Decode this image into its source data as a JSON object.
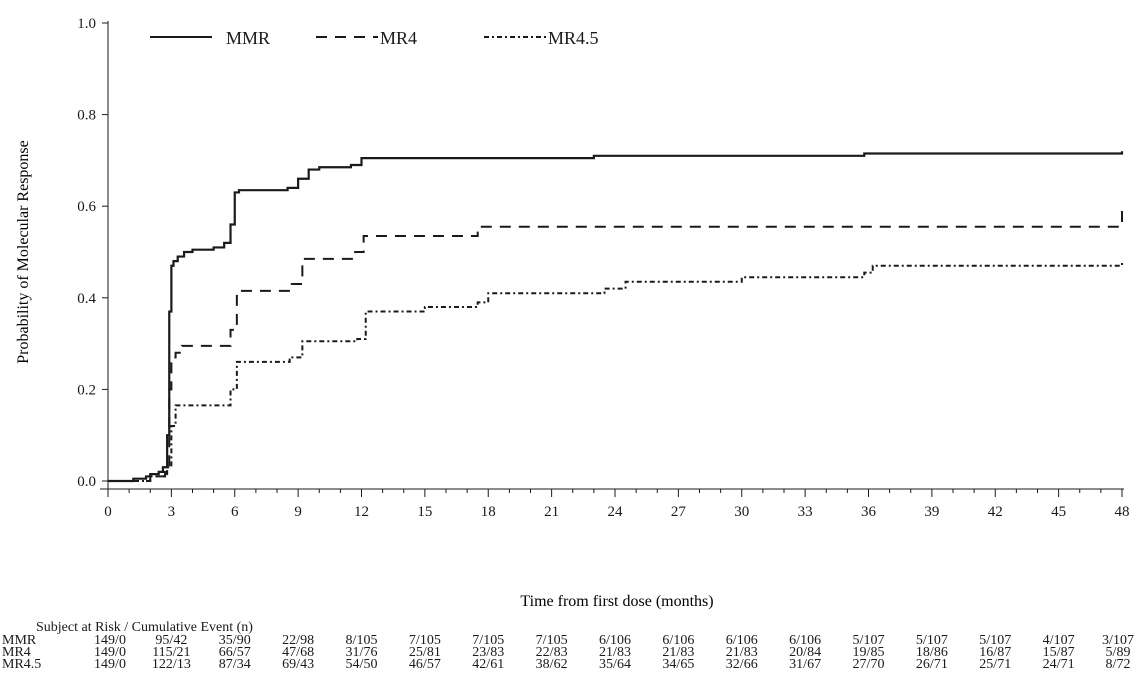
{
  "chart_data": {
    "type": "line",
    "step": true,
    "xlabel": "Time from first dose (months)",
    "ylabel": "Probability of Molecular Response",
    "xlim": [
      0,
      48
    ],
    "ylim": [
      0,
      1.0
    ],
    "xticks": [
      "0",
      "3",
      "6",
      "9",
      "12",
      "15",
      "18",
      "21",
      "24",
      "27",
      "30",
      "33",
      "36",
      "39",
      "42",
      "45",
      "48"
    ],
    "yticks": [
      "0.0",
      "0.2",
      "0.4",
      "0.6",
      "0.8",
      "1.0"
    ],
    "grid": false,
    "legend_position": "top-left",
    "series": [
      {
        "name": "MMR",
        "style": "solid",
        "x": [
          0,
          1.2,
          1.8,
          2.0,
          2.4,
          2.6,
          2.8,
          2.9,
          3.0,
          3.1,
          3.3,
          3.6,
          4.0,
          5.0,
          5.5,
          5.8,
          6.0,
          6.2,
          8.5,
          9.0,
          9.5,
          10.0,
          11.5,
          12.0,
          23.0,
          35.8,
          48.0
        ],
        "y": [
          0,
          0.005,
          0.01,
          0.015,
          0.02,
          0.03,
          0.1,
          0.37,
          0.47,
          0.48,
          0.49,
          0.5,
          0.505,
          0.51,
          0.52,
          0.56,
          0.63,
          0.635,
          0.64,
          0.66,
          0.68,
          0.685,
          0.69,
          0.705,
          0.71,
          0.715,
          0.72
        ]
      },
      {
        "name": "MR4",
        "style": "dashed",
        "x": [
          0,
          2.0,
          2.7,
          2.9,
          3.0,
          3.2,
          3.5,
          5.8,
          6.1,
          8.7,
          9.2,
          11.7,
          12.1,
          17.5,
          48.0
        ],
        "y": [
          0,
          0.01,
          0.02,
          0.2,
          0.27,
          0.28,
          0.295,
          0.33,
          0.415,
          0.43,
          0.485,
          0.5,
          0.535,
          0.555,
          0.595
        ]
      },
      {
        "name": "MR4.5",
        "style": "dotted-dash",
        "x": [
          0,
          2.0,
          2.8,
          3.0,
          3.2,
          5.8,
          6.1,
          8.6,
          9.2,
          11.8,
          12.2,
          15.0,
          17.5,
          18.0,
          23.5,
          24.5,
          30.0,
          35.8,
          36.2,
          48.0
        ],
        "y": [
          0,
          0.01,
          0.03,
          0.12,
          0.165,
          0.2,
          0.26,
          0.27,
          0.305,
          0.31,
          0.37,
          0.38,
          0.39,
          0.41,
          0.42,
          0.435,
          0.445,
          0.455,
          0.47,
          0.48
        ]
      }
    ]
  },
  "risk_table": {
    "title": "Subject at Risk / Cumulative Event (n)",
    "rows": [
      {
        "label": "MMR",
        "values": [
          "149/0",
          "95/42",
          "35/90",
          "22/98",
          "8/105",
          "7/105",
          "7/105",
          "7/105",
          "6/106",
          "6/106",
          "6/106",
          "6/106",
          "5/107",
          "5/107",
          "5/107",
          "4/107",
          "3/107"
        ]
      },
      {
        "label": "MR4",
        "values": [
          "149/0",
          "115/21",
          "66/57",
          "47/68",
          "31/76",
          "25/81",
          "23/83",
          "22/83",
          "21/83",
          "21/83",
          "21/83",
          "20/84",
          "19/85",
          "18/86",
          "16/87",
          "15/87",
          "5/89"
        ]
      },
      {
        "label": "MR4.5",
        "values": [
          "149/0",
          "122/13",
          "87/34",
          "69/43",
          "54/50",
          "46/57",
          "42/61",
          "38/62",
          "35/64",
          "34/65",
          "32/66",
          "31/67",
          "27/70",
          "26/71",
          "25/71",
          "24/71",
          "8/72"
        ]
      }
    ]
  },
  "colors": {
    "line": "#1a1a1a",
    "background": "#ffffff"
  }
}
